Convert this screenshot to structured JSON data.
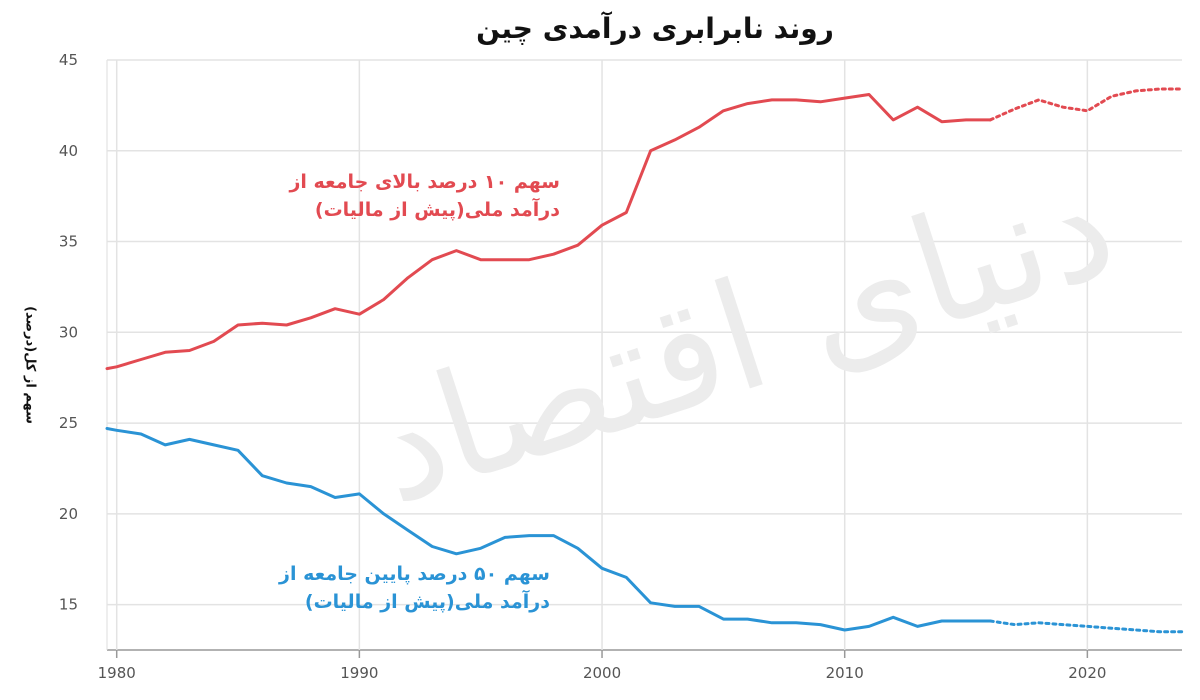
{
  "title": "روند نابرابری درآمدی چین",
  "watermark": "دنیای اقتصاد",
  "chart_data": {
    "type": "line",
    "title": "روند نابرابری درآمدی چین",
    "xlabel": "",
    "ylabel": "سهم از کل(درصد)",
    "xlim": [
      1979.6,
      2023.9
    ],
    "ylim": [
      12.5,
      45
    ],
    "xticks": [
      1980,
      1990,
      2000,
      2010,
      2020
    ],
    "yticks": [
      15,
      20,
      25,
      30,
      35,
      40,
      45
    ],
    "grid": true,
    "series": [
      {
        "name": "سهم ۱۰ درصد بالای جامعه از درآمد ملی(پیش از مالیات)",
        "label_lines": [
          "سهم ۱۰ درصد بالای جامعه از",
          "درآمد ملی(پیش از مالیات)"
        ],
        "color": "#e24a51",
        "x": [
          1979.6,
          1980,
          1981,
          1982,
          1983,
          1984,
          1985,
          1986,
          1987,
          1988,
          1989,
          1990,
          1991,
          1992,
          1993,
          1994,
          1995,
          1996,
          1997,
          1998,
          1999,
          2000,
          2001,
          2002,
          2003,
          2004,
          2005,
          2006,
          2007,
          2008,
          2009,
          2010,
          2011,
          2012,
          2013,
          2014,
          2015,
          2016
        ],
        "values": [
          28.0,
          28.1,
          28.5,
          28.9,
          29.0,
          29.5,
          30.4,
          30.5,
          30.4,
          30.8,
          31.3,
          31.0,
          31.8,
          33.0,
          34.0,
          34.5,
          34.0,
          34.0,
          34.0,
          34.3,
          34.8,
          35.9,
          36.6,
          40.0,
          40.6,
          41.3,
          42.2,
          42.6,
          42.8,
          42.8,
          42.7,
          42.9,
          43.1,
          41.7,
          42.4,
          41.6,
          41.7,
          41.7
        ],
        "projection_x": [
          2016,
          2017,
          2018,
          2019,
          2020,
          2021,
          2022,
          2023,
          2023.9
        ],
        "projection_values": [
          41.7,
          42.3,
          42.8,
          42.4,
          42.2,
          43.0,
          43.3,
          43.4,
          43.4
        ]
      },
      {
        "name": "سهم ۵۰ درصد پایین جامعه از درآمد ملی(پیش از مالیات)",
        "label_lines": [
          "سهم ۵۰ درصد پایین جامعه از",
          "درآمد ملی(پیش از مالیات)"
        ],
        "color": "#2a93d5",
        "x": [
          1979.6,
          1980,
          1981,
          1982,
          1983,
          1984,
          1985,
          1986,
          1987,
          1988,
          1989,
          1990,
          1991,
          1992,
          1993,
          1994,
          1995,
          1996,
          1997,
          1998,
          1999,
          2000,
          2001,
          2002,
          2003,
          2004,
          2005,
          2006,
          2007,
          2008,
          2009,
          2010,
          2011,
          2012,
          2013,
          2014,
          2015,
          2016
        ],
        "values": [
          24.7,
          24.6,
          24.4,
          23.8,
          24.1,
          23.8,
          23.5,
          22.1,
          21.7,
          21.5,
          20.9,
          21.1,
          20.0,
          19.1,
          18.2,
          17.8,
          18.1,
          18.7,
          18.8,
          18.8,
          18.1,
          17.0,
          16.5,
          15.1,
          14.9,
          14.9,
          14.2,
          14.2,
          14.0,
          14.0,
          13.9,
          13.6,
          13.8,
          14.3,
          13.8,
          14.1,
          14.1,
          14.1
        ],
        "projection_x": [
          2016,
          2017,
          2018,
          2019,
          2020,
          2021,
          2022,
          2023,
          2023.9
        ],
        "projection_values": [
          14.1,
          13.9,
          14.0,
          13.9,
          13.8,
          13.7,
          13.6,
          13.5,
          13.5
        ]
      }
    ]
  }
}
